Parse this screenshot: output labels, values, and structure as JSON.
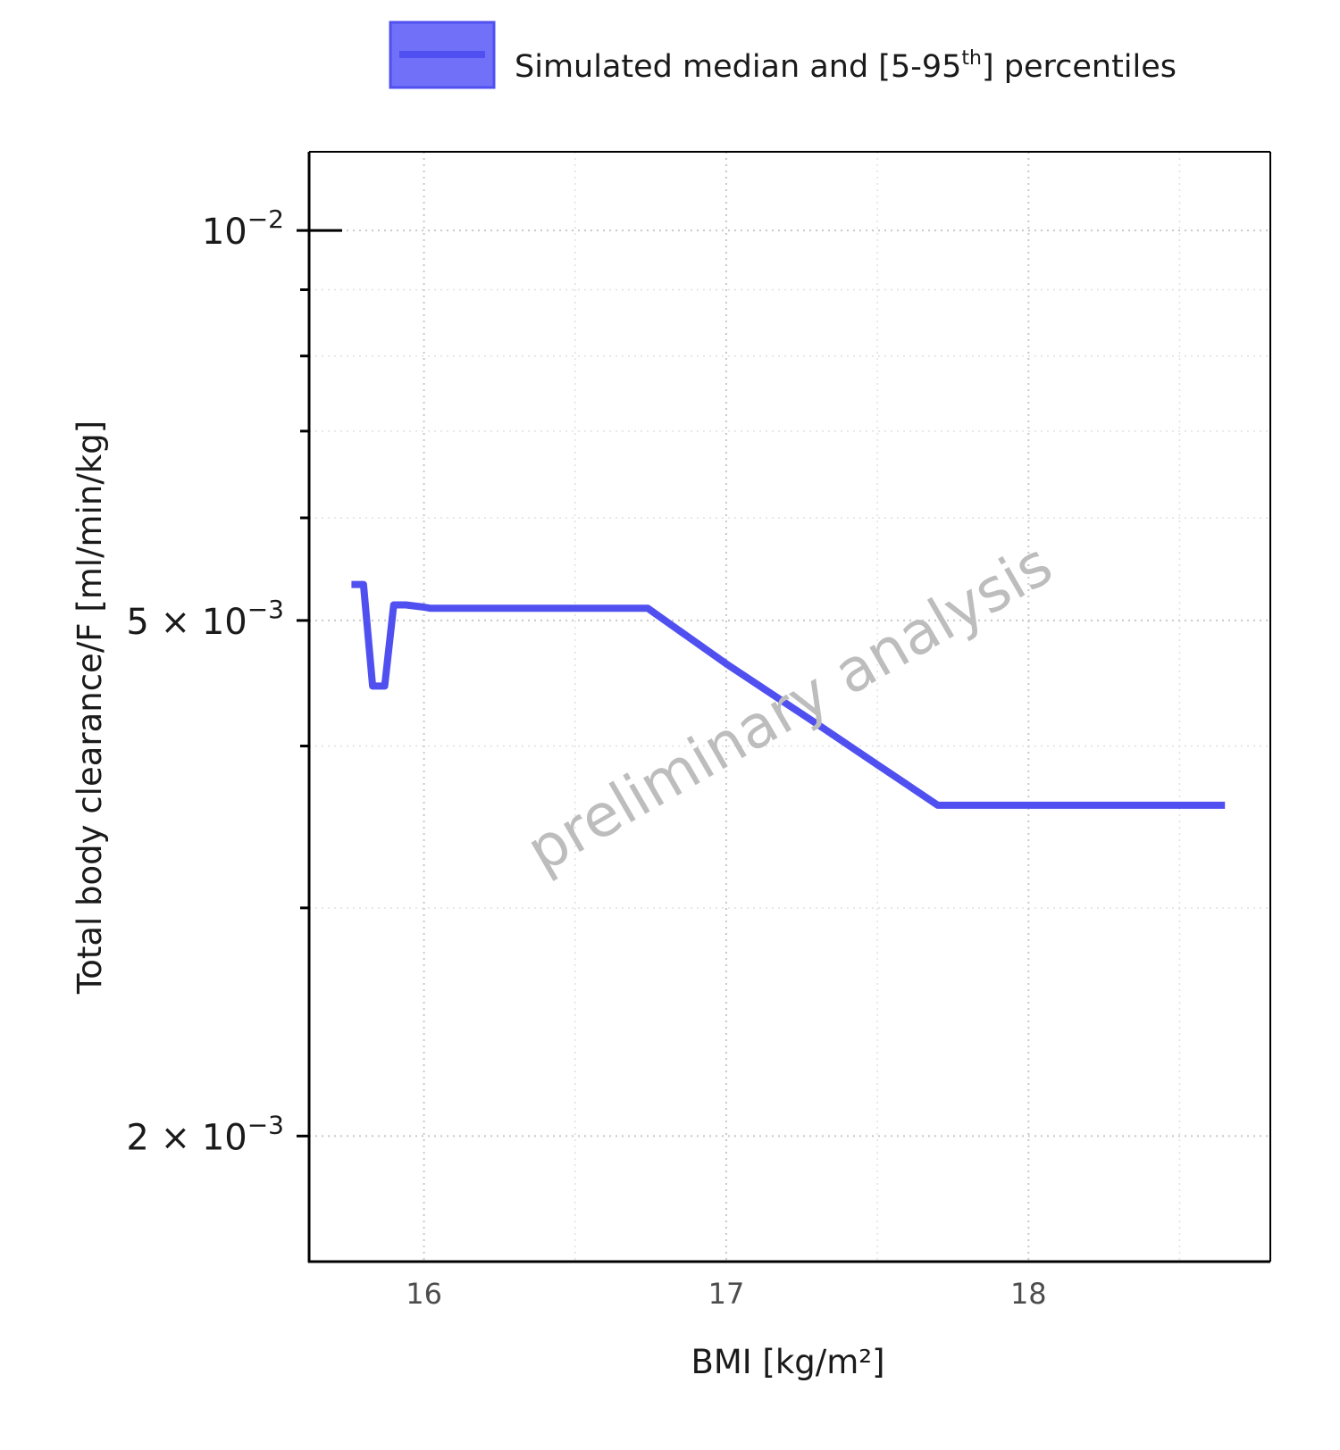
{
  "chart_data": {
    "type": "line",
    "title": "",
    "xlabel": "BMI [kg/m²]",
    "ylabel": "Total body clearance/F [ml/min/kg]",
    "xlim": [
      15.62,
      18.8
    ],
    "ylim": [
      0.0016,
      0.0115
    ],
    "yscale": "log",
    "grid": true,
    "legend_position": "top",
    "xticks": [
      {
        "value": 16,
        "label": "16"
      },
      {
        "value": 17,
        "label": "17"
      },
      {
        "value": 18,
        "label": "18"
      }
    ],
    "xminor": [
      16.5,
      17.5,
      18.5
    ],
    "yticks": [
      {
        "value": 0.01,
        "base": "10",
        "exp": "−2"
      },
      {
        "value": 0.005,
        "base": "5 × 10",
        "exp": "−3"
      },
      {
        "value": 0.002,
        "base": "2 × 10",
        "exp": "−3"
      }
    ],
    "yminor": [
      0.009,
      0.008,
      0.007,
      0.006,
      0.004,
      0.003
    ],
    "legend": {
      "label_prefix": "Simulated median and [5-95",
      "label_sup": "th",
      "label_suffix": "] percentiles"
    },
    "watermark": "preliminary analysis",
    "series": [
      {
        "name": "Simulated median and [5-95th] percentiles",
        "color": "#5050f0",
        "band_color": "#7070f8",
        "x": [
          15.76,
          15.8,
          15.83,
          15.87,
          15.9,
          15.94,
          16.0,
          16.02,
          16.3,
          16.5,
          16.74,
          17.0,
          17.3,
          17.5,
          17.7,
          18.0,
          18.3,
          18.65
        ],
        "y": [
          0.00533,
          0.00533,
          0.00445,
          0.00445,
          0.00514,
          0.00514,
          0.00512,
          0.00511,
          0.00511,
          0.00511,
          0.00511,
          0.00463,
          0.00416,
          0.00387,
          0.0036,
          0.0036,
          0.0036,
          0.0036
        ]
      }
    ]
  }
}
